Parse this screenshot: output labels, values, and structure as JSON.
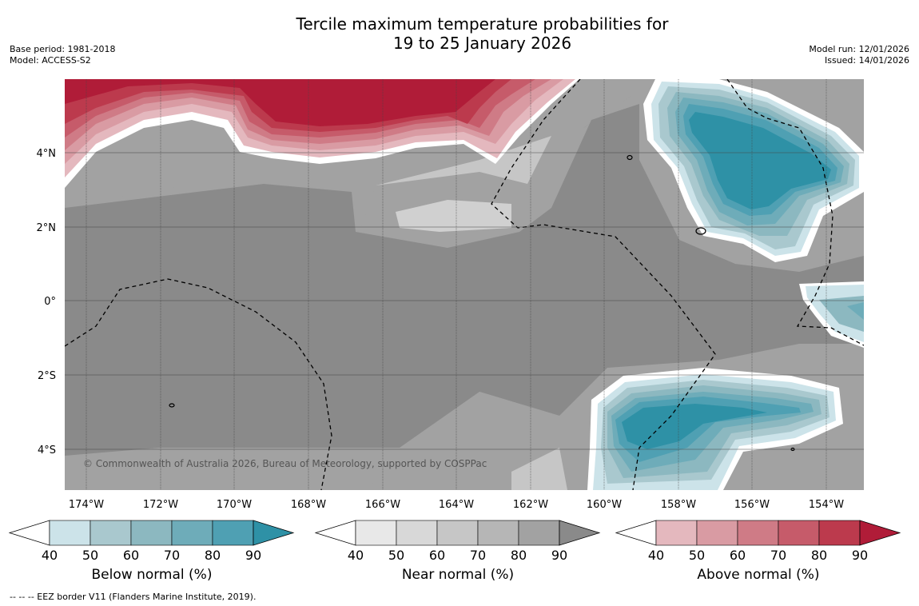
{
  "header": {
    "title_line1": "Tercile maximum temperature probabilities for",
    "title_line2": "19 to 25 January 2026",
    "base_period": "Base period: 1981-2018",
    "model": "Model: ACCESS-S2",
    "model_run": "Model run: 12/01/2026",
    "issued": "Issued: 14/01/2026"
  },
  "map": {
    "lat_labels": [
      "4°N",
      "2°N",
      "0°",
      "2°S",
      "4°S"
    ],
    "lon_labels": [
      "174°W",
      "172°W",
      "170°W",
      "168°W",
      "166°W",
      "164°W",
      "162°W",
      "160°W",
      "158°W",
      "156°W",
      "154°W"
    ],
    "credit": "© Commonwealth of Australia 2026, Bureau of Meteorology, supported by COSPPac",
    "colors": {
      "below": [
        "#cce3e9",
        "#a9c8ce",
        "#8cb8c0",
        "#6eacb9",
        "#4fa0b3",
        "#2e91a6"
      ],
      "near": [
        "#e8e8e8",
        "#d8d8d8",
        "#c6c6c6",
        "#b6b6b6",
        "#a2a2a2",
        "#8a8a8a"
      ],
      "above": [
        "#e4b8be",
        "#d99ba3",
        "#cf7b86",
        "#c65b6a",
        "#bc3a4d",
        "#b01c38"
      ]
    }
  },
  "colorbars": [
    {
      "title": "Below normal (%)",
      "ticks": [
        "40",
        "50",
        "60",
        "70",
        "80",
        "90"
      ]
    },
    {
      "title": "Near normal (%)",
      "ticks": [
        "40",
        "50",
        "60",
        "70",
        "80",
        "90"
      ]
    },
    {
      "title": "Above normal (%)",
      "ticks": [
        "40",
        "50",
        "60",
        "70",
        "80",
        "90"
      ]
    }
  ],
  "footnote": "--  --  -- EEZ border V11 (Flanders Marine Institute, 2019)."
}
